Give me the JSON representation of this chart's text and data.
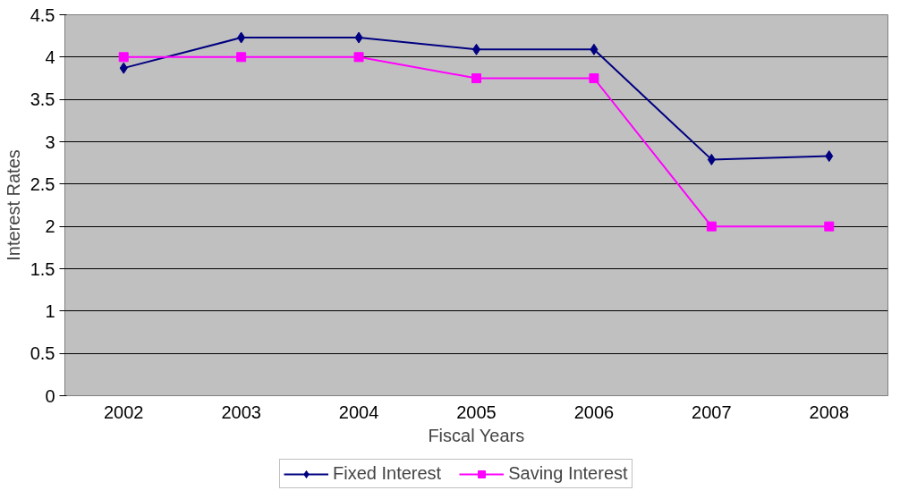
{
  "chart_data": {
    "type": "line",
    "xlabel": "Fiscal Years",
    "ylabel": "Interest Rates",
    "categories": [
      "2002",
      "2003",
      "2004",
      "2005",
      "2006",
      "2007",
      "2008"
    ],
    "series": [
      {
        "name": "Fixed Interest",
        "color": "#000080",
        "marker": "diamond",
        "values": [
          3.87,
          4.23,
          4.23,
          4.09,
          4.09,
          2.79,
          2.83
        ]
      },
      {
        "name": "Saving Interest",
        "color": "#ff00ff",
        "marker": "square",
        "values": [
          4,
          4,
          4,
          3.75,
          3.75,
          2,
          2
        ]
      }
    ],
    "ylim": [
      0,
      4.5
    ],
    "yticks": [
      0,
      0.5,
      1,
      1.5,
      2,
      2.5,
      3,
      3.5,
      4,
      4.5
    ],
    "grid": "y",
    "legend": "bottom"
  }
}
